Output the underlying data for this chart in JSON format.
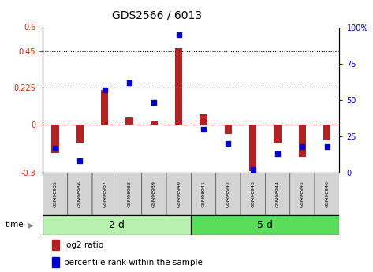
{
  "title": "GDS2566 / 6013",
  "samples": [
    "GSM96935",
    "GSM96936",
    "GSM96937",
    "GSM96938",
    "GSM96939",
    "GSM96940",
    "GSM96941",
    "GSM96942",
    "GSM96943",
    "GSM96944",
    "GSM96945",
    "GSM96946"
  ],
  "log2_ratio": [
    -0.18,
    -0.12,
    0.21,
    0.04,
    0.02,
    0.47,
    0.06,
    -0.06,
    -0.29,
    -0.12,
    -0.2,
    -0.1
  ],
  "percentile_rank": [
    17,
    8,
    57,
    62,
    48,
    95,
    30,
    20,
    2,
    13,
    18,
    18
  ],
  "bar_color": "#b22222",
  "dot_color": "#0000cd",
  "group1_label": "2 d",
  "group1_samples": 6,
  "group2_label": "5 d",
  "group2_samples": 6,
  "group1_color": "#b8f0b0",
  "group2_color": "#5add5a",
  "ylim_left": [
    -0.3,
    0.6
  ],
  "ylim_right": [
    0,
    100
  ],
  "yticks_left": [
    -0.3,
    0,
    0.225,
    0.45,
    0.6
  ],
  "yticks_right": [
    0,
    25,
    50,
    75,
    100
  ],
  "ytick_labels_left": [
    "-0.3",
    "0",
    "0.225",
    "0.45",
    "0.6"
  ],
  "ytick_labels_right": [
    "0",
    "25",
    "50",
    "75",
    "100%"
  ],
  "hlines": [
    0.225,
    0.45
  ],
  "time_label": "time",
  "legend_entries": [
    "log2 ratio",
    "percentile rank within the sample"
  ],
  "left_color": "#cc2200",
  "right_color": "#0000cc",
  "bar_width": 0.3,
  "dot_size": 16
}
